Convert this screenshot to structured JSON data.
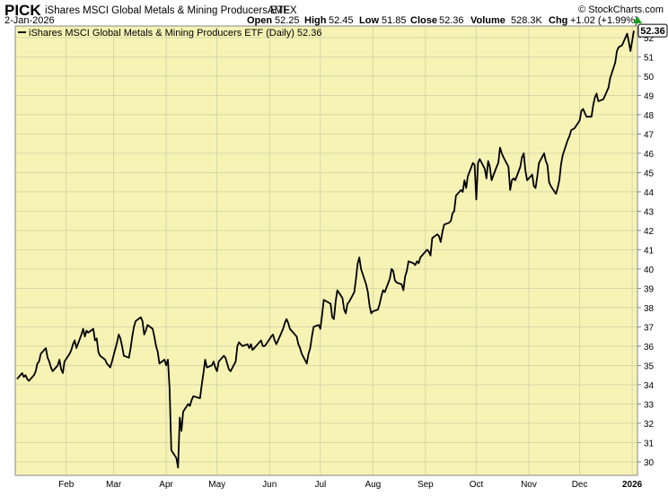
{
  "header": {
    "symbol": "PICK",
    "name": "iShares MSCI Global Metals & Mining Producers ETF",
    "exchange": "AMEX",
    "watermark": "© StockCharts.com",
    "date": "2-Jan-2026",
    "open_label": "Open",
    "open_value": "52.25",
    "high_label": "High",
    "high_value": "52.45",
    "low_label": "Low",
    "low_value": "51.85",
    "close_label": "Close",
    "close_value": "52.36",
    "volume_label": "Volume",
    "volume_value": "528.3K",
    "chg_label": "Chg",
    "chg_value": "+1.02 (+1.99%)"
  },
  "colors": {
    "plot_background": "#f6f3b5",
    "line": "#000000",
    "grid": "#c8c8a0",
    "badge_border": "#000000",
    "up_arrow": "#1a9e1a"
  },
  "chart_data": {
    "type": "line",
    "legend": {
      "text": "iShares MSCI Global Metals & Mining Producers ETF (Daily) 52.36",
      "position": "top-left"
    },
    "last_value_badge": "52.36",
    "ylim": [
      29.3,
      52.6
    ],
    "y_ticks": [
      30,
      31,
      32,
      33,
      34,
      35,
      36,
      37,
      38,
      39,
      40,
      41,
      42,
      43,
      44,
      45,
      46,
      47,
      48,
      49,
      50,
      51,
      52
    ],
    "x_ticks": [
      {
        "label": "Feb",
        "date": "2025-02-01"
      },
      {
        "label": "Mar",
        "date": "2025-03-01"
      },
      {
        "label": "Apr",
        "date": "2025-04-01"
      },
      {
        "label": "May",
        "date": "2025-05-01"
      },
      {
        "label": "Jun",
        "date": "2025-06-01"
      },
      {
        "label": "Jul",
        "date": "2025-07-01"
      },
      {
        "label": "Aug",
        "date": "2025-08-01"
      },
      {
        "label": "Sep",
        "date": "2025-09-01"
      },
      {
        "label": "Oct",
        "date": "2025-10-01"
      },
      {
        "label": "Nov",
        "date": "2025-11-01"
      },
      {
        "label": "Dec",
        "date": "2025-12-01"
      },
      {
        "label": "2026",
        "date": "2026-01-01"
      }
    ],
    "grid": true,
    "series": [
      {
        "name": "iShares MSCI Global Metals & Mining Producers ETF (Daily)",
        "points": [
          [
            "2025-01-03",
            34.3
          ],
          [
            "2025-01-06",
            34.6
          ],
          [
            "2025-01-07",
            34.4
          ],
          [
            "2025-01-08",
            34.5
          ],
          [
            "2025-01-09",
            34.3
          ],
          [
            "2025-01-10",
            34.2
          ],
          [
            "2025-01-13",
            34.5
          ],
          [
            "2025-01-14",
            34.7
          ],
          [
            "2025-01-15",
            35.1
          ],
          [
            "2025-01-16",
            35.2
          ],
          [
            "2025-01-17",
            35.6
          ],
          [
            "2025-01-20",
            35.9
          ],
          [
            "2025-01-21",
            35.4
          ],
          [
            "2025-01-22",
            35.2
          ],
          [
            "2025-01-23",
            34.9
          ],
          [
            "2025-01-24",
            34.7
          ],
          [
            "2025-01-27",
            35.0
          ],
          [
            "2025-01-28",
            35.3
          ],
          [
            "2025-01-29",
            34.8
          ],
          [
            "2025-01-30",
            34.6
          ],
          [
            "2025-01-31",
            35.2
          ],
          [
            "2025-02-03",
            35.6
          ],
          [
            "2025-02-04",
            35.8
          ],
          [
            "2025-02-05",
            36.1
          ],
          [
            "2025-02-06",
            36.3
          ],
          [
            "2025-02-07",
            35.9
          ],
          [
            "2025-02-10",
            36.6
          ],
          [
            "2025-02-11",
            36.9
          ],
          [
            "2025-02-12",
            36.5
          ],
          [
            "2025-02-13",
            36.8
          ],
          [
            "2025-02-14",
            36.7
          ],
          [
            "2025-02-17",
            36.9
          ],
          [
            "2025-02-18",
            36.3
          ],
          [
            "2025-02-19",
            36.4
          ],
          [
            "2025-02-20",
            35.7
          ],
          [
            "2025-02-21",
            35.5
          ],
          [
            "2025-02-24",
            35.3
          ],
          [
            "2025-02-25",
            35.1
          ],
          [
            "2025-02-26",
            35.0
          ],
          [
            "2025-02-27",
            34.9
          ],
          [
            "2025-02-28",
            35.2
          ],
          [
            "2025-03-03",
            36.2
          ],
          [
            "2025-03-04",
            36.6
          ],
          [
            "2025-03-05",
            36.4
          ],
          [
            "2025-03-06",
            36.0
          ],
          [
            "2025-03-07",
            35.5
          ],
          [
            "2025-03-10",
            35.4
          ],
          [
            "2025-03-11",
            35.9
          ],
          [
            "2025-03-12",
            36.5
          ],
          [
            "2025-03-13",
            37.0
          ],
          [
            "2025-03-14",
            37.3
          ],
          [
            "2025-03-17",
            37.5
          ],
          [
            "2025-03-18",
            37.3
          ],
          [
            "2025-03-19",
            36.6
          ],
          [
            "2025-03-20",
            36.8
          ],
          [
            "2025-03-21",
            37.1
          ],
          [
            "2025-03-24",
            36.9
          ],
          [
            "2025-03-25",
            36.5
          ],
          [
            "2025-03-26",
            36.0
          ],
          [
            "2025-03-27",
            35.7
          ],
          [
            "2025-03-28",
            35.1
          ],
          [
            "2025-03-31",
            35.3
          ],
          [
            "2025-04-01",
            35.0
          ],
          [
            "2025-04-02",
            35.3
          ],
          [
            "2025-04-03",
            33.8
          ],
          [
            "2025-04-04",
            30.6
          ],
          [
            "2025-04-07",
            30.2
          ],
          [
            "2025-04-08",
            29.7
          ],
          [
            "2025-04-09",
            32.3
          ],
          [
            "2025-04-10",
            31.6
          ],
          [
            "2025-04-11",
            32.6
          ],
          [
            "2025-04-14",
            33.0
          ],
          [
            "2025-04-15",
            32.9
          ],
          [
            "2025-04-16",
            33.2
          ],
          [
            "2025-04-17",
            33.4
          ],
          [
            "2025-04-21",
            33.3
          ],
          [
            "2025-04-22",
            34.0
          ],
          [
            "2025-04-23",
            34.6
          ],
          [
            "2025-04-24",
            35.3
          ],
          [
            "2025-04-25",
            34.9
          ],
          [
            "2025-04-28",
            35.0
          ],
          [
            "2025-04-29",
            35.2
          ],
          [
            "2025-04-30",
            34.9
          ],
          [
            "2025-05-01",
            34.7
          ],
          [
            "2025-05-02",
            35.2
          ],
          [
            "2025-05-05",
            35.5
          ],
          [
            "2025-05-06",
            35.4
          ],
          [
            "2025-05-07",
            35.1
          ],
          [
            "2025-05-08",
            34.8
          ],
          [
            "2025-05-09",
            34.7
          ],
          [
            "2025-05-12",
            35.2
          ],
          [
            "2025-05-13",
            36.0
          ],
          [
            "2025-05-14",
            36.2
          ],
          [
            "2025-05-15",
            36.1
          ],
          [
            "2025-05-16",
            36.0
          ],
          [
            "2025-05-19",
            36.1
          ],
          [
            "2025-05-20",
            35.9
          ],
          [
            "2025-05-21",
            36.1
          ],
          [
            "2025-05-22",
            35.8
          ],
          [
            "2025-05-23",
            35.9
          ],
          [
            "2025-05-27",
            36.3
          ],
          [
            "2025-05-28",
            36.0
          ],
          [
            "2025-05-29",
            36.0
          ],
          [
            "2025-05-30",
            36.1
          ],
          [
            "2025-06-02",
            36.5
          ],
          [
            "2025-06-03",
            36.6
          ],
          [
            "2025-06-04",
            36.3
          ],
          [
            "2025-06-05",
            36.1
          ],
          [
            "2025-06-06",
            36.3
          ],
          [
            "2025-06-09",
            36.9
          ],
          [
            "2025-06-10",
            37.2
          ],
          [
            "2025-06-11",
            37.4
          ],
          [
            "2025-06-12",
            37.2
          ],
          [
            "2025-06-13",
            36.9
          ],
          [
            "2025-06-16",
            36.6
          ],
          [
            "2025-06-17",
            36.5
          ],
          [
            "2025-06-18",
            36.1
          ],
          [
            "2025-06-19",
            35.9
          ],
          [
            "2025-06-20",
            35.6
          ],
          [
            "2025-06-23",
            35.1
          ],
          [
            "2025-06-24",
            35.6
          ],
          [
            "2025-06-25",
            35.9
          ],
          [
            "2025-06-26",
            36.5
          ],
          [
            "2025-06-27",
            37.0
          ],
          [
            "2025-06-30",
            37.1
          ],
          [
            "2025-07-01",
            36.9
          ],
          [
            "2025-07-02",
            37.6
          ],
          [
            "2025-07-03",
            38.4
          ],
          [
            "2025-07-07",
            38.2
          ],
          [
            "2025-07-08",
            37.5
          ],
          [
            "2025-07-09",
            37.4
          ],
          [
            "2025-07-10",
            38.3
          ],
          [
            "2025-07-11",
            38.9
          ],
          [
            "2025-07-14",
            38.5
          ],
          [
            "2025-07-15",
            37.9
          ],
          [
            "2025-07-16",
            37.7
          ],
          [
            "2025-07-17",
            38.2
          ],
          [
            "2025-07-18",
            38.3
          ],
          [
            "2025-07-21",
            38.8
          ],
          [
            "2025-07-22",
            39.5
          ],
          [
            "2025-07-23",
            40.3
          ],
          [
            "2025-07-24",
            40.6
          ],
          [
            "2025-07-25",
            40.0
          ],
          [
            "2025-07-28",
            39.2
          ],
          [
            "2025-07-29",
            38.8
          ],
          [
            "2025-07-30",
            38.1
          ],
          [
            "2025-07-31",
            37.7
          ],
          [
            "2025-08-01",
            37.8
          ],
          [
            "2025-08-04",
            37.9
          ],
          [
            "2025-08-05",
            38.2
          ],
          [
            "2025-08-06",
            38.6
          ],
          [
            "2025-08-07",
            38.9
          ],
          [
            "2025-08-08",
            38.8
          ],
          [
            "2025-08-11",
            39.5
          ],
          [
            "2025-08-12",
            40.0
          ],
          [
            "2025-08-13",
            39.9
          ],
          [
            "2025-08-14",
            39.4
          ],
          [
            "2025-08-15",
            39.3
          ],
          [
            "2025-08-18",
            39.2
          ],
          [
            "2025-08-19",
            38.9
          ],
          [
            "2025-08-20",
            39.6
          ],
          [
            "2025-08-21",
            39.9
          ],
          [
            "2025-08-22",
            40.4
          ],
          [
            "2025-08-25",
            40.3
          ],
          [
            "2025-08-26",
            40.2
          ],
          [
            "2025-08-27",
            40.4
          ],
          [
            "2025-08-28",
            40.3
          ],
          [
            "2025-08-29",
            40.6
          ],
          [
            "2025-09-02",
            41.0
          ],
          [
            "2025-09-03",
            40.9
          ],
          [
            "2025-09-04",
            40.7
          ],
          [
            "2025-09-05",
            41.6
          ],
          [
            "2025-09-08",
            41.8
          ],
          [
            "2025-09-09",
            41.7
          ],
          [
            "2025-09-10",
            41.4
          ],
          [
            "2025-09-11",
            41.9
          ],
          [
            "2025-09-12",
            42.3
          ],
          [
            "2025-09-15",
            42.4
          ],
          [
            "2025-09-16",
            42.5
          ],
          [
            "2025-09-17",
            42.9
          ],
          [
            "2025-09-18",
            43.0
          ],
          [
            "2025-09-19",
            43.8
          ],
          [
            "2025-09-22",
            44.1
          ],
          [
            "2025-09-23",
            44.0
          ],
          [
            "2025-09-24",
            44.6
          ],
          [
            "2025-09-25",
            44.2
          ],
          [
            "2025-09-26",
            44.8
          ],
          [
            "2025-09-29",
            45.5
          ],
          [
            "2025-09-30",
            45.4
          ],
          [
            "2025-10-01",
            43.6
          ],
          [
            "2025-10-02",
            45.5
          ],
          [
            "2025-10-03",
            45.7
          ],
          [
            "2025-10-06",
            45.2
          ],
          [
            "2025-10-07",
            44.7
          ],
          [
            "2025-10-08",
            45.6
          ],
          [
            "2025-10-09",
            45.3
          ],
          [
            "2025-10-10",
            44.6
          ],
          [
            "2025-10-13",
            45.3
          ],
          [
            "2025-10-14",
            45.5
          ],
          [
            "2025-10-15",
            46.3
          ],
          [
            "2025-10-16",
            46.0
          ],
          [
            "2025-10-17",
            45.8
          ],
          [
            "2025-10-20",
            45.3
          ],
          [
            "2025-10-21",
            44.1
          ],
          [
            "2025-10-22",
            44.6
          ],
          [
            "2025-10-23",
            44.7
          ],
          [
            "2025-10-24",
            44.6
          ],
          [
            "2025-10-27",
            45.3
          ],
          [
            "2025-10-28",
            45.8
          ],
          [
            "2025-10-29",
            46.0
          ],
          [
            "2025-10-30",
            45.1
          ],
          [
            "2025-10-31",
            44.6
          ],
          [
            "2025-11-03",
            44.9
          ],
          [
            "2025-11-04",
            44.3
          ],
          [
            "2025-11-05",
            44.2
          ],
          [
            "2025-11-06",
            44.8
          ],
          [
            "2025-11-07",
            45.5
          ],
          [
            "2025-11-10",
            46.0
          ],
          [
            "2025-11-11",
            45.6
          ],
          [
            "2025-11-12",
            45.4
          ],
          [
            "2025-11-13",
            44.5
          ],
          [
            "2025-11-14",
            44.3
          ],
          [
            "2025-11-17",
            43.9
          ],
          [
            "2025-11-18",
            44.2
          ],
          [
            "2025-11-19",
            44.6
          ],
          [
            "2025-11-20",
            45.4
          ],
          [
            "2025-11-21",
            45.9
          ],
          [
            "2025-11-24",
            46.7
          ],
          [
            "2025-11-25",
            46.9
          ],
          [
            "2025-11-26",
            47.2
          ],
          [
            "2025-11-28",
            47.3
          ],
          [
            "2025-12-01",
            47.7
          ],
          [
            "2025-12-02",
            48.2
          ],
          [
            "2025-12-03",
            48.3
          ],
          [
            "2025-12-04",
            48.1
          ],
          [
            "2025-12-05",
            47.9
          ],
          [
            "2025-12-08",
            47.9
          ],
          [
            "2025-12-09",
            48.5
          ],
          [
            "2025-12-10",
            48.9
          ],
          [
            "2025-12-11",
            49.1
          ],
          [
            "2025-12-12",
            48.7
          ],
          [
            "2025-12-15",
            48.8
          ],
          [
            "2025-12-16",
            49.0
          ],
          [
            "2025-12-17",
            49.2
          ],
          [
            "2025-12-18",
            49.4
          ],
          [
            "2025-12-19",
            49.9
          ],
          [
            "2025-12-22",
            50.7
          ],
          [
            "2025-12-23",
            51.3
          ],
          [
            "2025-12-24",
            51.5
          ],
          [
            "2025-12-26",
            51.6
          ],
          [
            "2025-12-29",
            52.2
          ],
          [
            "2025-12-30",
            51.8
          ],
          [
            "2025-12-31",
            51.3
          ],
          [
            "2026-01-02",
            52.36
          ]
        ]
      }
    ]
  }
}
